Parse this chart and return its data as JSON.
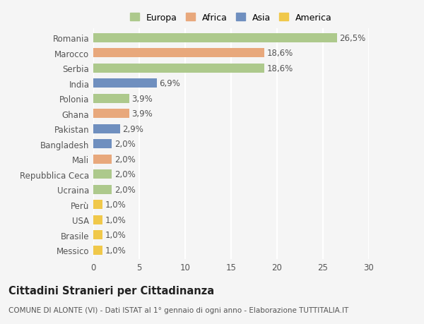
{
  "countries": [
    "Romania",
    "Marocco",
    "Serbia",
    "India",
    "Polonia",
    "Ghana",
    "Pakistan",
    "Bangladesh",
    "Mali",
    "Repubblica Ceca",
    "Ucraina",
    "Perù",
    "USA",
    "Brasile",
    "Messico"
  ],
  "values": [
    26.5,
    18.6,
    18.6,
    6.9,
    3.9,
    3.9,
    2.9,
    2.0,
    2.0,
    2.0,
    2.0,
    1.0,
    1.0,
    1.0,
    1.0
  ],
  "labels": [
    "26,5%",
    "18,6%",
    "18,6%",
    "6,9%",
    "3,9%",
    "3,9%",
    "2,9%",
    "2,0%",
    "2,0%",
    "2,0%",
    "2,0%",
    "1,0%",
    "1,0%",
    "1,0%",
    "1,0%"
  ],
  "continents": [
    "Europa",
    "Africa",
    "Europa",
    "Asia",
    "Europa",
    "Africa",
    "Asia",
    "Asia",
    "Africa",
    "Europa",
    "Europa",
    "America",
    "America",
    "America",
    "America"
  ],
  "colors": {
    "Europa": "#adc98c",
    "Africa": "#e8a87c",
    "Asia": "#6f8fbf",
    "America": "#f0c84a"
  },
  "xlim": [
    0,
    30
  ],
  "xticks": [
    0,
    5,
    10,
    15,
    20,
    25,
    30
  ],
  "bg_color": "#f5f5f5",
  "grid_color": "#ffffff",
  "title": "Cittadini Stranieri per Cittadinanza",
  "subtitle": "COMUNE DI ALONTE (VI) - Dati ISTAT al 1° gennaio di ogni anno - Elaborazione TUTTITALIA.IT",
  "bar_height": 0.6,
  "label_fontsize": 8.5,
  "tick_fontsize": 8.5,
  "title_fontsize": 10.5,
  "subtitle_fontsize": 7.5
}
